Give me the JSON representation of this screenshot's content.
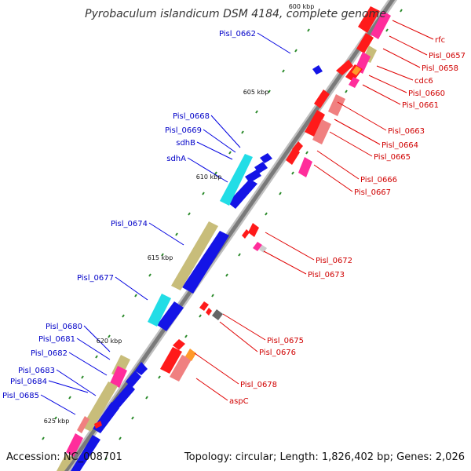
{
  "title": "Pyrobaculum islandicum DSM 4184, complete genome",
  "accession": "Accession: NC_008701",
  "topology": "Topology: circular; Length: 1,826,402 bp; Genes: 2,026",
  "colors": {
    "fwd_gene": "#1414e6",
    "rev_gene": "#ff1a1a",
    "backbone": "#8c8c8c",
    "pink": "#ff2d9b",
    "salmon": "#f08080",
    "khaki": "#c8bd7a",
    "cyan": "#22dde6",
    "orange": "#ff9a2a",
    "green_tick": "#2a8a2a"
  },
  "ticks": [
    {
      "label": "600 kbp"
    },
    {
      "label": "605 kbp"
    },
    {
      "label": "610 kbp"
    },
    {
      "label": "615 kbp"
    },
    {
      "label": "620 kbp"
    },
    {
      "label": "625 kbp"
    }
  ],
  "forward_labels": [
    {
      "name": "Pisl_0662"
    },
    {
      "name": "Pisl_0668"
    },
    {
      "name": "Pisl_0669"
    },
    {
      "name": "sdhB"
    },
    {
      "name": "sdhA"
    },
    {
      "name": "Pisl_0674"
    },
    {
      "name": "Pisl_0677"
    },
    {
      "name": "Pisl_0680"
    },
    {
      "name": "Pisl_0681"
    },
    {
      "name": "Pisl_0682"
    },
    {
      "name": "Pisl_0683"
    },
    {
      "name": "Pisl_0684"
    },
    {
      "name": "Pisl_0685"
    }
  ],
  "reverse_labels": [
    {
      "name": "rfc"
    },
    {
      "name": "Pisl_0657"
    },
    {
      "name": "Pisl_0658"
    },
    {
      "name": "cdc6"
    },
    {
      "name": "Pisl_0660"
    },
    {
      "name": "Pisl_0661"
    },
    {
      "name": "Pisl_0663"
    },
    {
      "name": "Pisl_0664"
    },
    {
      "name": "Pisl_0665"
    },
    {
      "name": "Pisl_0666"
    },
    {
      "name": "Pisl_0667"
    },
    {
      "name": "Pisl_0672"
    },
    {
      "name": "Pisl_0673"
    },
    {
      "name": "Pisl_0675"
    },
    {
      "name": "Pisl_0676"
    },
    {
      "name": "Pisl_0678"
    },
    {
      "name": "aspC"
    }
  ]
}
